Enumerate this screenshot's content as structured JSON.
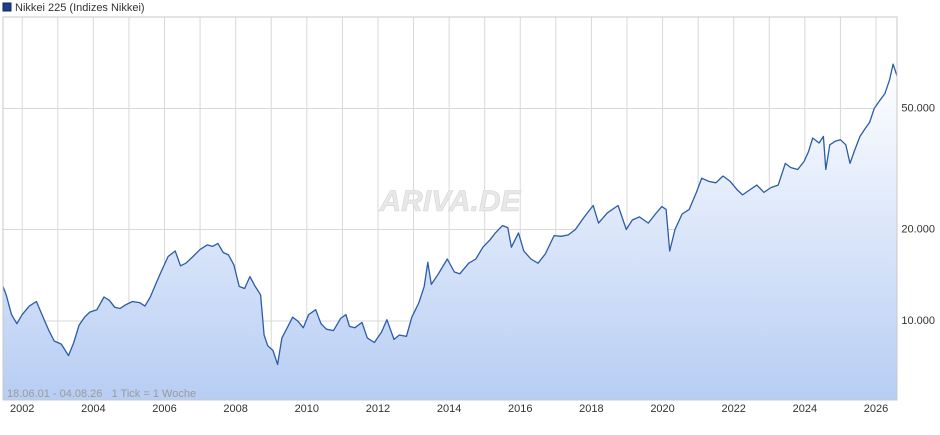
{
  "chart_data": {
    "type": "line",
    "legend": "Nikkei 225 (Indizes Nikkei)",
    "range_note": "18.06.01 - 04.08.26   1 Tick = 1 Woche",
    "watermark": "ARIVA.DE",
    "log_scale": true,
    "grid": true,
    "fill_area": true,
    "x": [
      2001.46,
      2001.55,
      2001.7,
      2001.85,
      2002.0,
      2002.2,
      2002.4,
      2002.6,
      2002.75,
      2002.9,
      2003.1,
      2003.3,
      2003.45,
      2003.6,
      2003.75,
      2003.9,
      2004.1,
      2004.3,
      2004.45,
      2004.6,
      2004.75,
      2004.9,
      2005.1,
      2005.3,
      2005.45,
      2005.6,
      2005.75,
      2005.9,
      2006.1,
      2006.3,
      2006.45,
      2006.6,
      2006.8,
      2007.0,
      2007.1,
      2007.2,
      2007.35,
      2007.5,
      2007.65,
      2007.8,
      2007.95,
      2008.1,
      2008.25,
      2008.4,
      2008.55,
      2008.7,
      2008.8,
      2008.9,
      2009.05,
      2009.18,
      2009.3,
      2009.45,
      2009.6,
      2009.75,
      2009.9,
      2010.05,
      2010.25,
      2010.4,
      2010.55,
      2010.75,
      2010.95,
      2011.1,
      2011.2,
      2011.35,
      2011.55,
      2011.7,
      2011.9,
      2012.1,
      2012.25,
      2012.45,
      2012.6,
      2012.8,
      2012.95,
      2013.15,
      2013.3,
      2013.4,
      2013.5,
      2013.7,
      2013.95,
      2014.15,
      2014.3,
      2014.55,
      2014.75,
      2014.95,
      2015.15,
      2015.3,
      2015.5,
      2015.65,
      2015.75,
      2015.95,
      2016.1,
      2016.3,
      2016.5,
      2016.7,
      2016.95,
      2017.15,
      2017.35,
      2017.55,
      2017.8,
      2018.05,
      2018.2,
      2018.45,
      2018.75,
      2018.98,
      2019.15,
      2019.35,
      2019.6,
      2019.8,
      2019.98,
      2020.1,
      2020.2,
      2020.35,
      2020.55,
      2020.75,
      2020.95,
      2021.1,
      2021.3,
      2021.5,
      2021.7,
      2021.9,
      2022.1,
      2022.25,
      2022.45,
      2022.65,
      2022.85,
      2023.05,
      2023.25,
      2023.45,
      2023.6,
      2023.8,
      2023.98,
      2024.1,
      2024.22,
      2024.4,
      2024.52,
      2024.59,
      2024.7,
      2024.85,
      2025.0,
      2025.15,
      2025.27,
      2025.4,
      2025.55,
      2025.7,
      2025.82,
      2025.95,
      2026.1,
      2026.25,
      2026.38,
      2026.48,
      2026.59
    ],
    "series": [
      {
        "name": "Nikkei 225 (Indizes Nikkei)",
        "color": "#2a5caa",
        "values": [
          13000,
          12200,
          10500,
          9800,
          10500,
          11200,
          11600,
          10200,
          9300,
          8600,
          8400,
          7700,
          8500,
          9700,
          10300,
          10700,
          10900,
          12000,
          11700,
          11100,
          11000,
          11300,
          11600,
          11500,
          11200,
          12000,
          13200,
          14500,
          16300,
          17000,
          15200,
          15500,
          16300,
          17200,
          17500,
          17800,
          17600,
          18000,
          16800,
          16500,
          15300,
          13000,
          12800,
          14000,
          13000,
          12200,
          9000,
          8300,
          8000,
          7200,
          8800,
          9500,
          10300,
          10000,
          9500,
          10500,
          10900,
          9800,
          9400,
          9300,
          10200,
          10500,
          9600,
          9500,
          9900,
          8800,
          8500,
          9200,
          10100,
          8700,
          9000,
          8900,
          10300,
          11500,
          13000,
          15600,
          13200,
          14300,
          16000,
          14500,
          14300,
          15500,
          16000,
          17500,
          18500,
          19500,
          20600,
          20300,
          17500,
          19500,
          17000,
          16000,
          15500,
          16600,
          19100,
          19000,
          19200,
          20000,
          22000,
          24000,
          21000,
          22700,
          24000,
          20000,
          21500,
          22000,
          21000,
          22500,
          23800,
          23300,
          17000,
          20000,
          22500,
          23300,
          26500,
          29500,
          28800,
          28500,
          30000,
          28800,
          27000,
          26000,
          27000,
          28000,
          26500,
          27500,
          28000,
          33000,
          32000,
          31500,
          33500,
          36000,
          40000,
          38500,
          40500,
          31500,
          38000,
          39000,
          39500,
          38000,
          33000,
          36500,
          40500,
          43000,
          45000,
          50000,
          53000,
          56000,
          62000,
          70000,
          64000
        ]
      }
    ],
    "xlim": [
      2001.46,
      2026.59
    ],
    "xticks": [
      2002,
      2004,
      2006,
      2008,
      2010,
      2012,
      2014,
      2016,
      2018,
      2020,
      2022,
      2024,
      2026
    ],
    "x_minor_ticks": [
      2003,
      2005,
      2007,
      2009,
      2011,
      2013,
      2015,
      2017,
      2019,
      2021,
      2023,
      2025
    ],
    "ylim": [
      5500,
      100000
    ],
    "yticks": [
      {
        "value": 10000,
        "label": "10.000"
      },
      {
        "value": 20000,
        "label": "20.000"
      },
      {
        "value": 50000,
        "label": "50.000"
      }
    ]
  }
}
